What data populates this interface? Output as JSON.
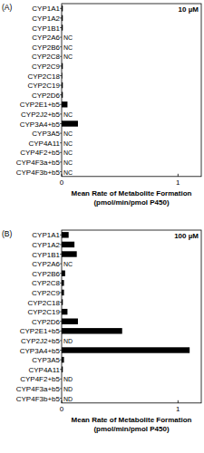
{
  "chart_data": [
    {
      "type": "bar",
      "orientation": "horizontal",
      "title": "(A)",
      "subtitle": "10 µM",
      "categories": [
        "CYP1A1",
        "CYP1A2",
        "CYP1B1",
        "CYP2A6",
        "CYP2B6",
        "CYP2C8",
        "CYP2C9",
        "CYP2C18",
        "CYP2C19",
        "CYP2D6",
        "CYP2E1+b5",
        "CYP2J2+b5",
        "CYP3A4+b5",
        "CYP3A5",
        "CYP4A11",
        "CYP4F2+b5",
        "CYP4F3a+b5",
        "CYP4F3b+b5"
      ],
      "values": [
        0.01,
        0.01,
        0.01,
        null,
        null,
        null,
        0.01,
        0.005,
        0.01,
        0.01,
        0.05,
        null,
        0.14,
        null,
        null,
        null,
        null,
        null
      ],
      "annotations": [
        {
          "category": "CYP2A6",
          "text": "NC"
        },
        {
          "category": "CYP2B6",
          "text": "NC"
        },
        {
          "category": "CYP2C8",
          "text": "NC"
        },
        {
          "category": "CYP2J2+b5",
          "text": "NC"
        },
        {
          "category": "CYP3A5",
          "text": "NC"
        },
        {
          "category": "CYP4A11",
          "text": "NC"
        },
        {
          "category": "CYP4F2+b5",
          "text": "NC"
        },
        {
          "category": "CYP4F3a+b5",
          "text": "NC"
        },
        {
          "category": "CYP4F3b+b5",
          "text": "NC"
        }
      ],
      "color": "#000000",
      "x_label": [
        "Mean Rate of Metabolite Formation",
        "(pmol/min/pmol P450)"
      ],
      "xlim": [
        0,
        1.2
      ],
      "xticks": [
        0,
        1
      ]
    },
    {
      "type": "bar",
      "orientation": "horizontal",
      "title": "(B)",
      "subtitle": "100 µM",
      "categories": [
        "CYP1A1",
        "CYP1A2",
        "CYP1B1",
        "CYP2A6",
        "CYP2B6",
        "CYP2C8",
        "CYP2C9",
        "CYP2C18",
        "CYP2C19",
        "CYP2D6",
        "CYP2E1+b5",
        "CYP2J2+b5",
        "CYP3A4+b5",
        "CYP3A5",
        "CYP4A11",
        "CYP4F2+b5",
        "CYP4F3a+b5",
        "CYP4F3b+b5"
      ],
      "values": [
        0.06,
        0.11,
        0.13,
        null,
        0.03,
        0.02,
        0.02,
        0.01,
        0.05,
        0.14,
        0.52,
        null,
        1.1,
        0.02,
        0.01,
        null,
        null,
        null
      ],
      "annotations": [
        {
          "category": "CYP2A6",
          "text": "NC"
        },
        {
          "category": "CYP2J2+b5",
          "text": "ND"
        },
        {
          "category": "CYP4F2+b5",
          "text": "ND"
        },
        {
          "category": "CYP4F3a+b5",
          "text": "ND"
        },
        {
          "category": "CYP4F3b+b5",
          "text": "ND"
        }
      ],
      "color": "#000000",
      "x_label": [
        "Mean Rate of Metabolite Formation",
        "(pmol/min/pmol P450)"
      ],
      "xlim": [
        0,
        1.2
      ],
      "xticks": [
        0,
        1
      ]
    }
  ]
}
